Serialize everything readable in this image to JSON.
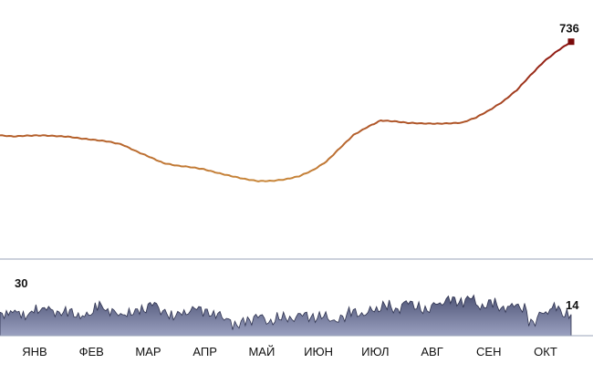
{
  "colors": {
    "line_low": "#d8a646",
    "line_high": "#8a0d0d",
    "bar_fill": "#4f5577",
    "bar_fill_light": "#9aa0c0",
    "divider": "#9aa3b8",
    "end_point": "#7a0a0a"
  },
  "chart_data": [
    {
      "type": "line",
      "x_unit": "week index (0 = early January)",
      "ylim": [
        600,
        740
      ],
      "xlim": [
        0,
        42
      ],
      "grid": false,
      "end_label": "736",
      "series": [
        {
          "values": [
            664.1,
            663.3,
            663.9,
            664.1,
            663.7,
            663.1,
            661.7,
            660.6,
            659.3,
            657.0,
            652.0,
            647.6,
            642.9,
            640.9,
            639.8,
            638.1,
            635.3,
            632.9,
            630.6,
            629.0,
            629.2,
            630.4,
            632.8,
            637.3,
            644.0,
            654.4,
            664.4,
            670.4,
            675.5,
            674.9,
            673.7,
            673.3,
            673.1,
            673.3,
            673.9,
            677.8,
            683.5,
            690.2,
            698.8,
            710.1,
            720.8,
            729.0,
            736.0
          ]
        }
      ]
    },
    {
      "type": "area",
      "ylim": [
        0,
        30
      ],
      "max_label": "30",
      "last_label": "14",
      "series": [
        {
          "values": [
            14,
            16,
            13,
            17,
            18,
            15,
            16,
            13,
            14,
            20,
            16,
            14,
            15,
            17,
            21,
            16,
            13,
            15,
            18,
            16,
            14,
            11,
            7,
            10,
            13,
            9,
            12,
            11,
            14,
            12,
            13,
            10,
            12,
            16,
            14,
            17,
            20,
            17,
            22,
            19,
            17,
            21,
            24,
            22,
            25,
            19,
            22,
            18,
            20,
            18,
            9,
            15,
            19,
            14
          ]
        }
      ]
    }
  ],
  "x_axis": {
    "months": [
      "ЯНВ",
      "ФЕВ",
      "МАР",
      "АПР",
      "МАЙ",
      "ИЮН",
      "ИЮЛ",
      "АВГ",
      "СЕН",
      "ОКТ"
    ]
  }
}
